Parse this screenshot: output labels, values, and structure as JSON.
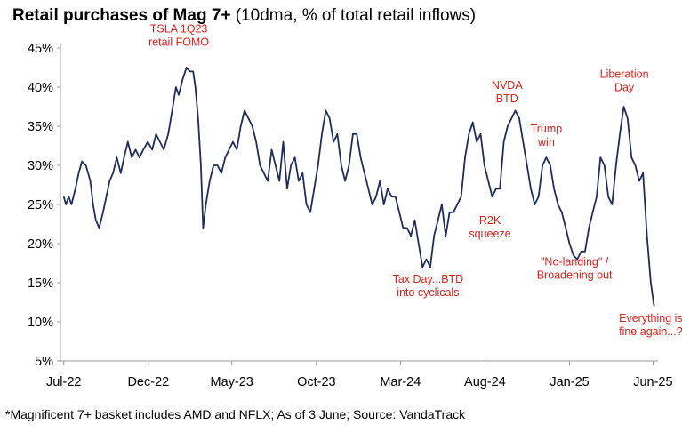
{
  "title": {
    "bold": "Retail purchases of Mag 7+",
    "rest": " (10dma, % of total retail inflows)"
  },
  "footnote": "*Magnificent 7+ basket includes AMD and NFLX; As of 3 June; Source: VandaTrack",
  "chart_data": {
    "type": "line",
    "series": [
      {
        "points": [
          [
            "2022-07-01",
            26
          ],
          [
            "2022-07-05",
            25
          ],
          [
            "2022-07-10",
            26
          ],
          [
            "2022-07-15",
            25
          ],
          [
            "2022-07-22",
            27
          ],
          [
            "2022-07-28",
            29
          ],
          [
            "2022-08-03",
            30.5
          ],
          [
            "2022-08-10",
            30
          ],
          [
            "2022-08-18",
            28
          ],
          [
            "2022-08-23",
            25
          ],
          [
            "2022-08-28",
            23
          ],
          [
            "2022-09-03",
            22
          ],
          [
            "2022-09-10",
            24
          ],
          [
            "2022-09-16",
            26
          ],
          [
            "2022-09-22",
            28
          ],
          [
            "2022-09-28",
            29
          ],
          [
            "2022-10-05",
            31
          ],
          [
            "2022-10-12",
            29
          ],
          [
            "2022-10-18",
            31
          ],
          [
            "2022-10-25",
            33
          ],
          [
            "2022-11-01",
            31
          ],
          [
            "2022-11-08",
            32
          ],
          [
            "2022-11-15",
            31
          ],
          [
            "2022-11-22",
            32
          ],
          [
            "2022-11-30",
            33
          ],
          [
            "2022-12-08",
            32
          ],
          [
            "2022-12-15",
            34
          ],
          [
            "2022-12-22",
            33
          ],
          [
            "2022-12-29",
            32
          ],
          [
            "2023-01-06",
            34
          ],
          [
            "2023-01-13",
            37
          ],
          [
            "2023-01-20",
            40
          ],
          [
            "2023-01-25",
            39
          ],
          [
            "2023-02-01",
            41
          ],
          [
            "2023-02-08",
            42.5
          ],
          [
            "2023-02-14",
            42
          ],
          [
            "2023-02-20",
            42
          ],
          [
            "2023-02-24",
            40
          ],
          [
            "2023-03-01",
            36
          ],
          [
            "2023-03-06",
            30
          ],
          [
            "2023-03-10",
            22
          ],
          [
            "2023-03-15",
            25
          ],
          [
            "2023-03-22",
            28
          ],
          [
            "2023-03-29",
            30
          ],
          [
            "2023-04-05",
            30
          ],
          [
            "2023-04-12",
            29
          ],
          [
            "2023-04-19",
            31
          ],
          [
            "2023-04-26",
            32
          ],
          [
            "2023-05-03",
            33
          ],
          [
            "2023-05-10",
            32
          ],
          [
            "2023-05-17",
            35
          ],
          [
            "2023-05-24",
            37
          ],
          [
            "2023-05-31",
            36
          ],
          [
            "2023-06-07",
            35
          ],
          [
            "2023-06-14",
            33
          ],
          [
            "2023-06-21",
            30
          ],
          [
            "2023-06-28",
            29
          ],
          [
            "2023-07-05",
            28
          ],
          [
            "2023-07-12",
            32
          ],
          [
            "2023-07-19",
            30
          ],
          [
            "2023-07-26",
            28
          ],
          [
            "2023-08-02",
            33
          ],
          [
            "2023-08-09",
            27
          ],
          [
            "2023-08-16",
            30
          ],
          [
            "2023-08-23",
            31
          ],
          [
            "2023-08-30",
            28
          ],
          [
            "2023-09-06",
            29
          ],
          [
            "2023-09-13",
            25
          ],
          [
            "2023-09-20",
            24
          ],
          [
            "2023-09-27",
            27
          ],
          [
            "2023-10-04",
            30
          ],
          [
            "2023-10-11",
            34
          ],
          [
            "2023-10-18",
            37
          ],
          [
            "2023-10-25",
            36
          ],
          [
            "2023-11-01",
            33
          ],
          [
            "2023-11-08",
            34
          ],
          [
            "2023-11-15",
            30
          ],
          [
            "2023-11-22",
            28
          ],
          [
            "2023-11-29",
            30
          ],
          [
            "2023-12-06",
            34
          ],
          [
            "2023-12-13",
            34
          ],
          [
            "2023-12-20",
            31
          ],
          [
            "2023-12-27",
            29
          ],
          [
            "2024-01-03",
            27
          ],
          [
            "2024-01-10",
            25
          ],
          [
            "2024-01-17",
            26
          ],
          [
            "2024-01-24",
            28
          ],
          [
            "2024-01-31",
            25
          ],
          [
            "2024-02-07",
            27
          ],
          [
            "2024-02-14",
            26
          ],
          [
            "2024-02-21",
            26
          ],
          [
            "2024-02-28",
            24
          ],
          [
            "2024-03-06",
            22
          ],
          [
            "2024-03-13",
            22
          ],
          [
            "2024-03-20",
            21
          ],
          [
            "2024-03-27",
            23
          ],
          [
            "2024-04-03",
            20
          ],
          [
            "2024-04-10",
            17
          ],
          [
            "2024-04-17",
            18
          ],
          [
            "2024-04-24",
            17
          ],
          [
            "2024-05-01",
            21
          ],
          [
            "2024-05-08",
            23
          ],
          [
            "2024-05-15",
            25
          ],
          [
            "2024-05-22",
            21
          ],
          [
            "2024-05-29",
            24
          ],
          [
            "2024-06-05",
            24
          ],
          [
            "2024-06-12",
            25
          ],
          [
            "2024-06-19",
            26
          ],
          [
            "2024-06-26",
            31
          ],
          [
            "2024-07-03",
            34
          ],
          [
            "2024-07-10",
            35.5
          ],
          [
            "2024-07-17",
            33
          ],
          [
            "2024-07-24",
            34
          ],
          [
            "2024-07-31",
            30
          ],
          [
            "2024-08-07",
            28
          ],
          [
            "2024-08-14",
            26
          ],
          [
            "2024-08-21",
            27
          ],
          [
            "2024-08-28",
            27
          ],
          [
            "2024-09-04",
            33
          ],
          [
            "2024-09-11",
            35
          ],
          [
            "2024-09-18",
            36
          ],
          [
            "2024-09-25",
            37
          ],
          [
            "2024-10-02",
            36
          ],
          [
            "2024-10-09",
            33
          ],
          [
            "2024-10-16",
            30
          ],
          [
            "2024-10-23",
            27
          ],
          [
            "2024-10-30",
            25
          ],
          [
            "2024-11-06",
            26
          ],
          [
            "2024-11-13",
            30
          ],
          [
            "2024-11-20",
            31
          ],
          [
            "2024-11-27",
            30
          ],
          [
            "2024-12-04",
            27
          ],
          [
            "2024-12-11",
            25
          ],
          [
            "2024-12-18",
            24
          ],
          [
            "2024-12-25",
            22
          ],
          [
            "2025-01-01",
            20
          ],
          [
            "2025-01-08",
            18.5
          ],
          [
            "2025-01-15",
            18
          ],
          [
            "2025-01-22",
            19
          ],
          [
            "2025-01-29",
            19
          ],
          [
            "2025-02-05",
            22
          ],
          [
            "2025-02-12",
            24
          ],
          [
            "2025-02-19",
            26
          ],
          [
            "2025-02-26",
            31
          ],
          [
            "2025-03-05",
            30
          ],
          [
            "2025-03-12",
            26
          ],
          [
            "2025-03-19",
            25
          ],
          [
            "2025-03-26",
            30
          ],
          [
            "2025-04-02",
            34
          ],
          [
            "2025-04-09",
            37.5
          ],
          [
            "2025-04-16",
            36
          ],
          [
            "2025-04-23",
            31
          ],
          [
            "2025-04-30",
            30
          ],
          [
            "2025-05-07",
            28
          ],
          [
            "2025-05-14",
            29
          ],
          [
            "2025-05-21",
            21
          ],
          [
            "2025-05-28",
            15
          ],
          [
            "2025-06-03",
            12
          ]
        ]
      }
    ],
    "x_ticks": [
      [
        "2022-07-01",
        "Jul-22"
      ],
      [
        "2022-12-01",
        "Dec-22"
      ],
      [
        "2023-05-01",
        "May-23"
      ],
      [
        "2023-10-01",
        "Oct-23"
      ],
      [
        "2024-03-01",
        "Mar-24"
      ],
      [
        "2024-08-01",
        "Aug-24"
      ],
      [
        "2025-01-01",
        "Jan-25"
      ],
      [
        "2025-06-01",
        "Jun-25"
      ]
    ],
    "y_ticks": [
      5,
      10,
      15,
      20,
      25,
      30,
      35,
      40,
      45
    ],
    "y_tick_suffix": "%",
    "ylim": [
      5,
      45
    ],
    "xlim": [
      "2022-06-25",
      "2025-06-10"
    ],
    "line_color": "#1f2d5c",
    "annotation_color": "#e0201a",
    "annotations": [
      {
        "lines": [
          "TSLA 1Q23",
          "retail FOMO"
        ],
        "date": "2023-01-25",
        "value": 47
      },
      {
        "lines": [
          "NVDA",
          "BTD"
        ],
        "date": "2024-09-10",
        "value": 39.8
      },
      {
        "lines": [
          "Liberation",
          "Day"
        ],
        "date": "2025-04-10",
        "value": 41.2
      },
      {
        "lines": [
          "Trump",
          "win"
        ],
        "date": "2024-11-20",
        "value": 34.2
      },
      {
        "lines": [
          "R2K",
          "squeeze"
        ],
        "date": "2024-08-10",
        "value": 22.5
      },
      {
        "lines": [
          "Tax Day...BTD",
          "into cyclicals"
        ],
        "date": "2024-04-20",
        "value": 15.0
      },
      {
        "lines": [
          "\"No-landing\" /",
          "Broadening out"
        ],
        "date": "2025-01-10",
        "value": 17.2
      },
      {
        "lines": [
          "Everything is",
          "fine again...?"
        ],
        "date": "2025-05-28",
        "value": 10.0
      }
    ]
  }
}
